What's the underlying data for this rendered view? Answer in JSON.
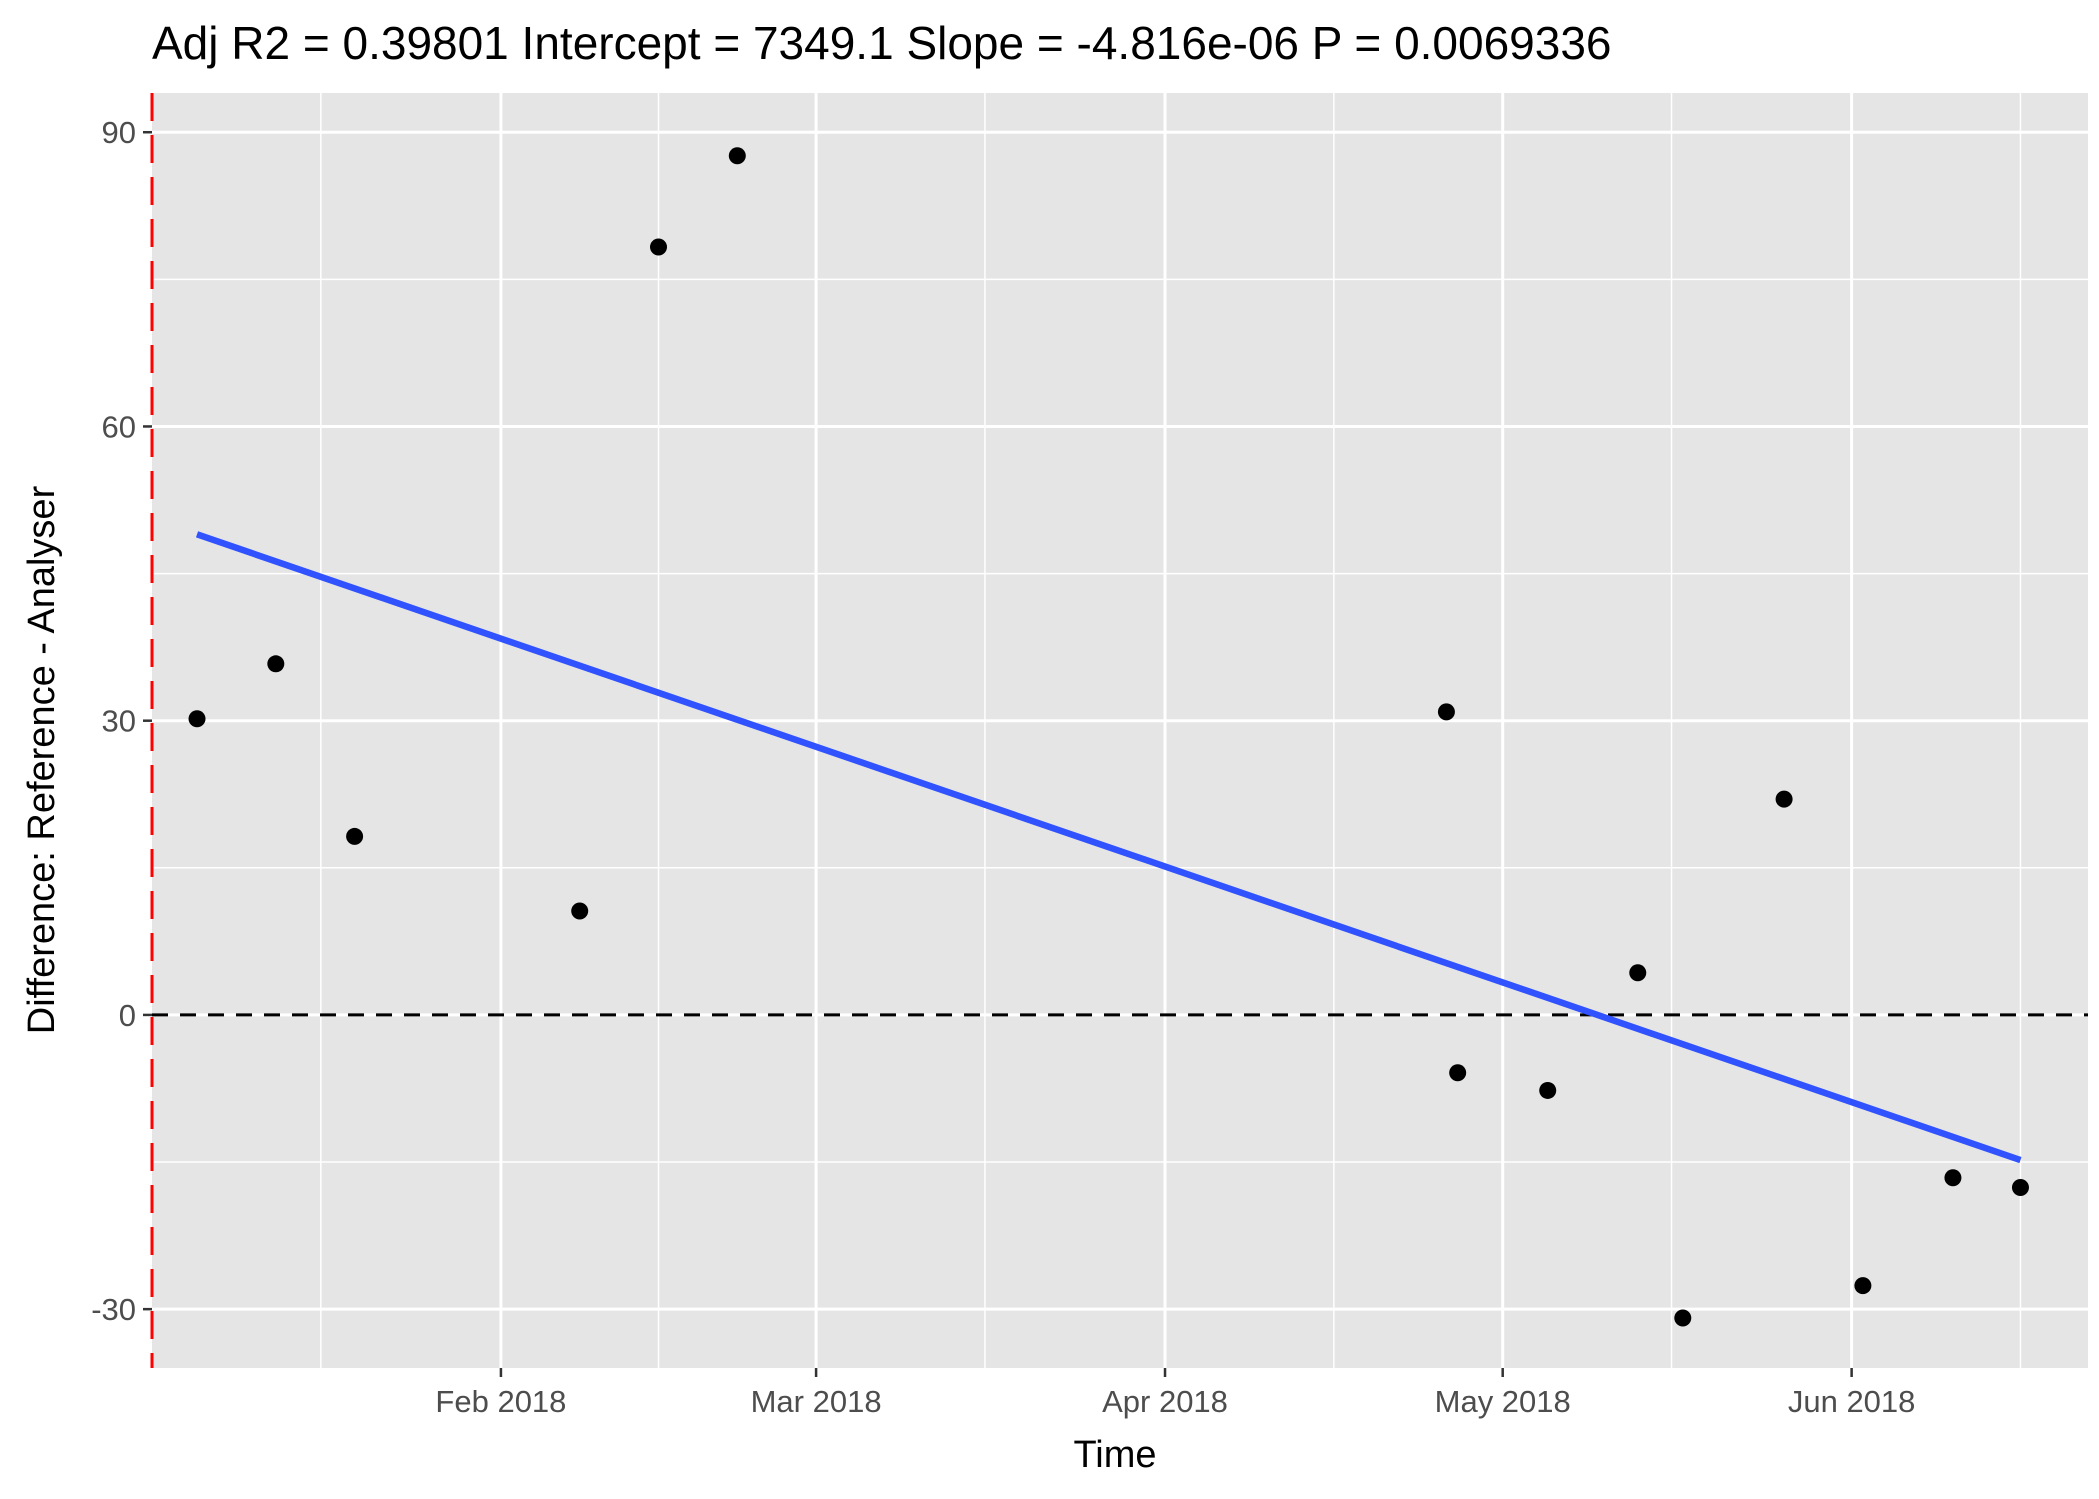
{
  "chart_data": {
    "type": "scatter",
    "title": "Adj R2 =  0.39801 Intercept = 7349.1  Slope = -4.816e-06  P = 0.0069336",
    "xlabel": "Time",
    "ylabel": "Difference: Reference - Analyser",
    "x_type": "date",
    "xlim": [
      "2018-01-01",
      "2018-06-22"
    ],
    "ylim": [
      -36,
      94
    ],
    "grid": true,
    "legend": "none",
    "x_ticks": [
      {
        "date": "2018-02-01",
        "label": "Feb 2018"
      },
      {
        "date": "2018-03-01",
        "label": "Mar 2018"
      },
      {
        "date": "2018-04-01",
        "label": "Apr 2018"
      },
      {
        "date": "2018-05-01",
        "label": "May 2018"
      },
      {
        "date": "2018-06-01",
        "label": "Jun 2018"
      }
    ],
    "x_minor_ticks": [
      "2018-01-16",
      "2018-02-15",
      "2018-03-16",
      "2018-04-16",
      "2018-05-16",
      "2018-06-16"
    ],
    "y_ticks": [
      {
        "value": -30,
        "label": "-30"
      },
      {
        "value": 0,
        "label": "0"
      },
      {
        "value": 30,
        "label": "30"
      },
      {
        "value": 60,
        "label": "60"
      },
      {
        "value": 90,
        "label": "90"
      }
    ],
    "y_minor_ticks": [
      -15,
      15,
      45,
      75
    ],
    "points": [
      {
        "x": "2018-01-05",
        "y": 30.2
      },
      {
        "x": "2018-01-12",
        "y": 35.8
      },
      {
        "x": "2018-01-19",
        "y": 18.2
      },
      {
        "x": "2018-02-08",
        "y": 10.6
      },
      {
        "x": "2018-02-15",
        "y": 78.3
      },
      {
        "x": "2018-02-22",
        "y": 87.6
      },
      {
        "x": "2018-04-26",
        "y": 30.9
      },
      {
        "x": "2018-04-27",
        "y": -5.9
      },
      {
        "x": "2018-05-05",
        "y": -7.7
      },
      {
        "x": "2018-05-13",
        "y": 4.3
      },
      {
        "x": "2018-05-17",
        "y": -30.9
      },
      {
        "x": "2018-05-26",
        "y": 22.0
      },
      {
        "x": "2018-06-02",
        "y": -27.6
      },
      {
        "x": "2018-06-10",
        "y": -16.6
      },
      {
        "x": "2018-06-16",
        "y": -17.6
      }
    ],
    "fit_line": {
      "x_start": "2018-01-05",
      "y_start": 49.0,
      "x_end": "2018-06-16",
      "y_end": -14.8,
      "color": "#3152ff"
    },
    "hline": {
      "y": 0,
      "color": "#000000",
      "style": "dashed"
    },
    "vline": {
      "x": "2018-01-01",
      "color": "#ff0000",
      "style": "dashed"
    },
    "colors": {
      "panel": "#e5e5e5",
      "grid": "#ffffff",
      "point": "#000000",
      "tick_text": "#4d4d4d",
      "tick_mark": "#333333"
    }
  }
}
